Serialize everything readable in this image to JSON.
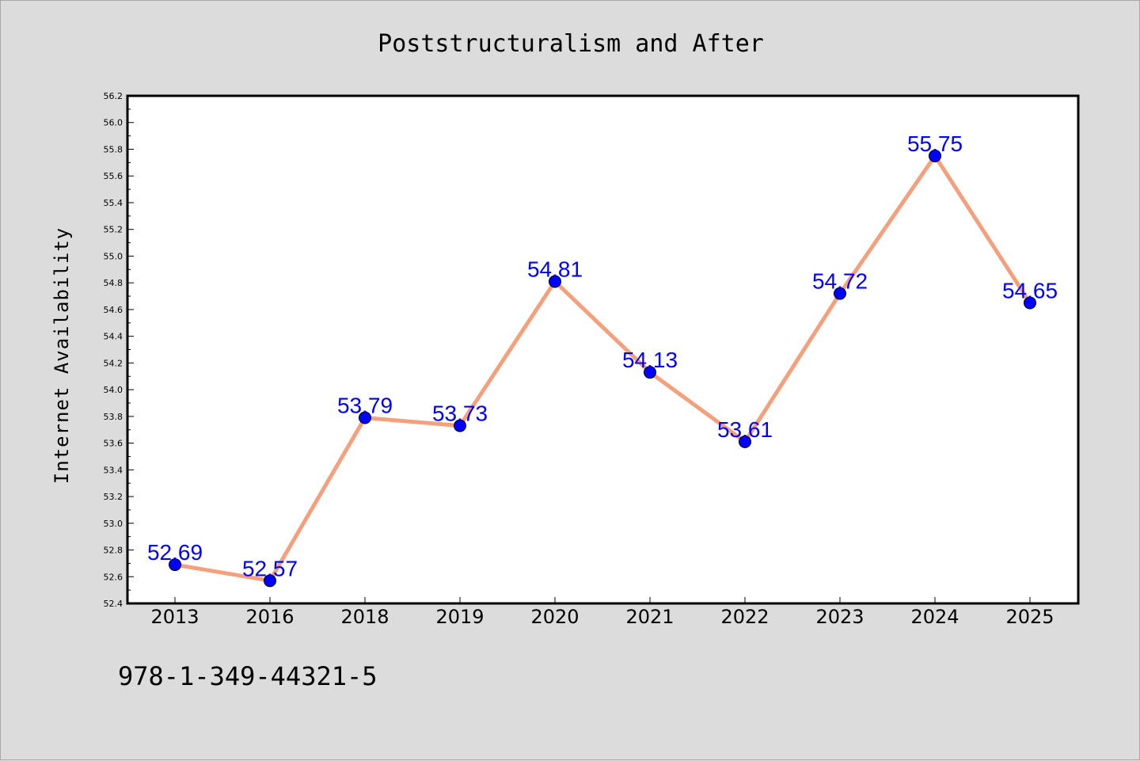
{
  "chart_data": {
    "type": "line",
    "title": "Poststructuralism and After",
    "xlabel": "",
    "ylabel": "Internet Availability",
    "categories": [
      "2013",
      "2016",
      "2018",
      "2019",
      "2020",
      "2021",
      "2022",
      "2023",
      "2024",
      "2025"
    ],
    "series": [
      {
        "values": [
          52.69,
          52.57,
          53.79,
          53.73,
          54.81,
          54.13,
          53.61,
          54.72,
          55.75,
          54.65
        ]
      }
    ],
    "data_labels": [
      "52.69",
      "52.57",
      "53.79",
      "53.73",
      "54.81",
      "54.13",
      "53.61",
      "54.72",
      "55.75",
      "54.65"
    ],
    "ylim": [
      52.4,
      56.2
    ],
    "yticks": [
      "52.4",
      "52.6",
      "52.8",
      "53.0",
      "53.2",
      "53.4",
      "53.6",
      "53.8",
      "54.0",
      "54.2",
      "54.4",
      "54.6",
      "54.8",
      "55.0",
      "55.2",
      "55.4",
      "55.6",
      "55.8",
      "56.0",
      "56.2"
    ],
    "grid": false,
    "legend": "none",
    "line_color": "#f4a07c",
    "marker_color": "#0000ff",
    "label_color": "#0000ff",
    "background": "#dcdcdc",
    "plot_background": "#ffffff"
  },
  "footer": {
    "isbn": "978-1-349-44321-5"
  }
}
